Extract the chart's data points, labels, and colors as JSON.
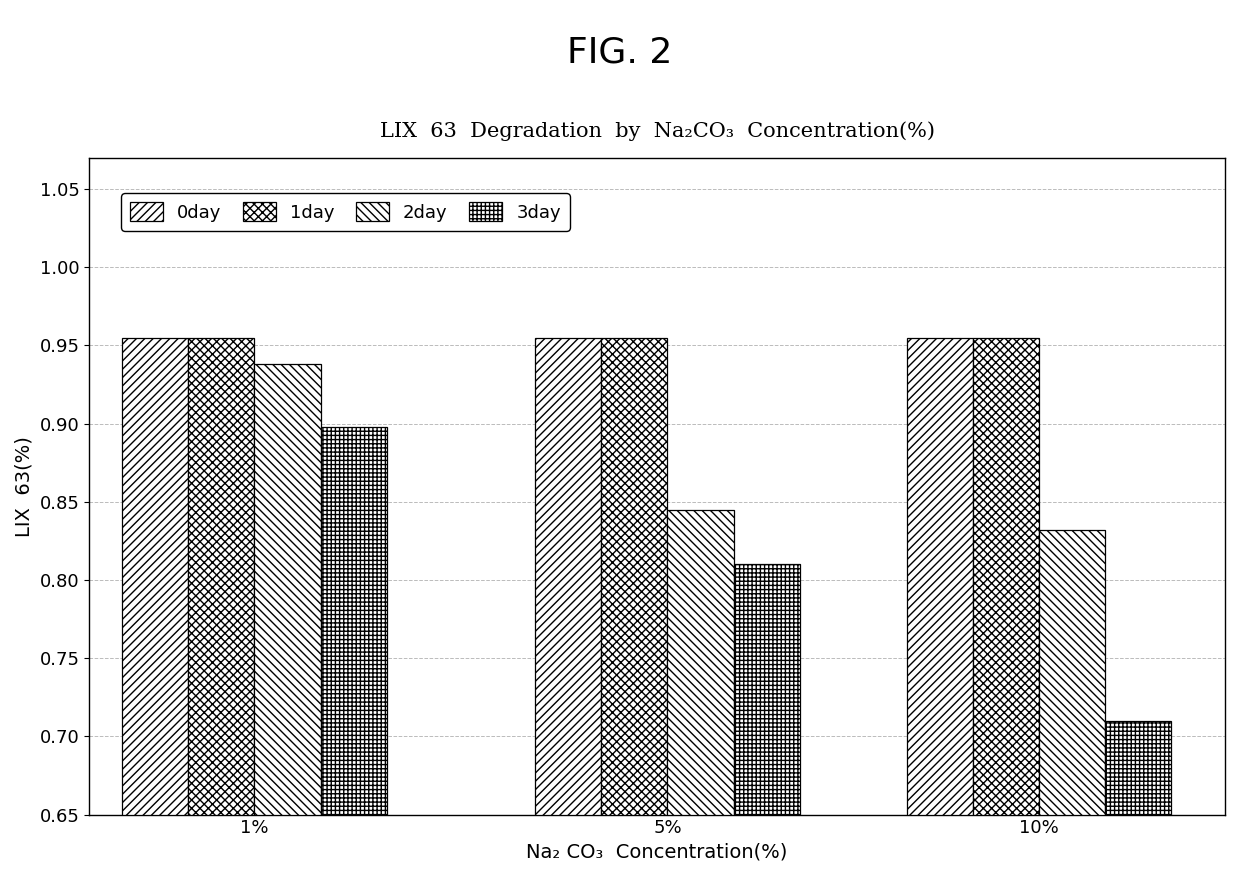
{
  "title_main": "FIG. 2",
  "chart_title": "LIX  63  Degradation  by  Na₂CO₃  Concentration(%)",
  "xlabel": "Na₂ CO₃  Concentration(%)",
  "ylabel": "LIX  63(%)",
  "categories": [
    "1%",
    "5%",
    "10%"
  ],
  "series_labels": [
    "0day",
    "1day",
    "2day",
    "3day"
  ],
  "values": {
    "0day": [
      0.955,
      0.955,
      0.955
    ],
    "1day": [
      0.955,
      0.955,
      0.955
    ],
    "2day": [
      0.938,
      0.845,
      0.832
    ],
    "3day": [
      0.898,
      0.81,
      0.71
    ]
  },
  "ylim": [
    0.65,
    1.07
  ],
  "yticks": [
    0.65,
    0.7,
    0.75,
    0.8,
    0.85,
    0.9,
    0.95,
    1.0,
    1.05
  ],
  "bar_width": 0.16,
  "background_color": "#ffffff",
  "plot_bg_color": "#ffffff",
  "grid_color": "#bbbbbb",
  "bar_edge_color": "#000000",
  "hatch_patterns": [
    "////",
    "xxxx",
    "\\\\\\\\",
    "++++"
  ],
  "bar_facecolors": [
    "#ffffff",
    "#ffffff",
    "#ffffff",
    "#ffffff"
  ],
  "title_fontsize": 26,
  "axis_label_fontsize": 14,
  "tick_fontsize": 13,
  "legend_fontsize": 13,
  "chart_title_fontsize": 15
}
